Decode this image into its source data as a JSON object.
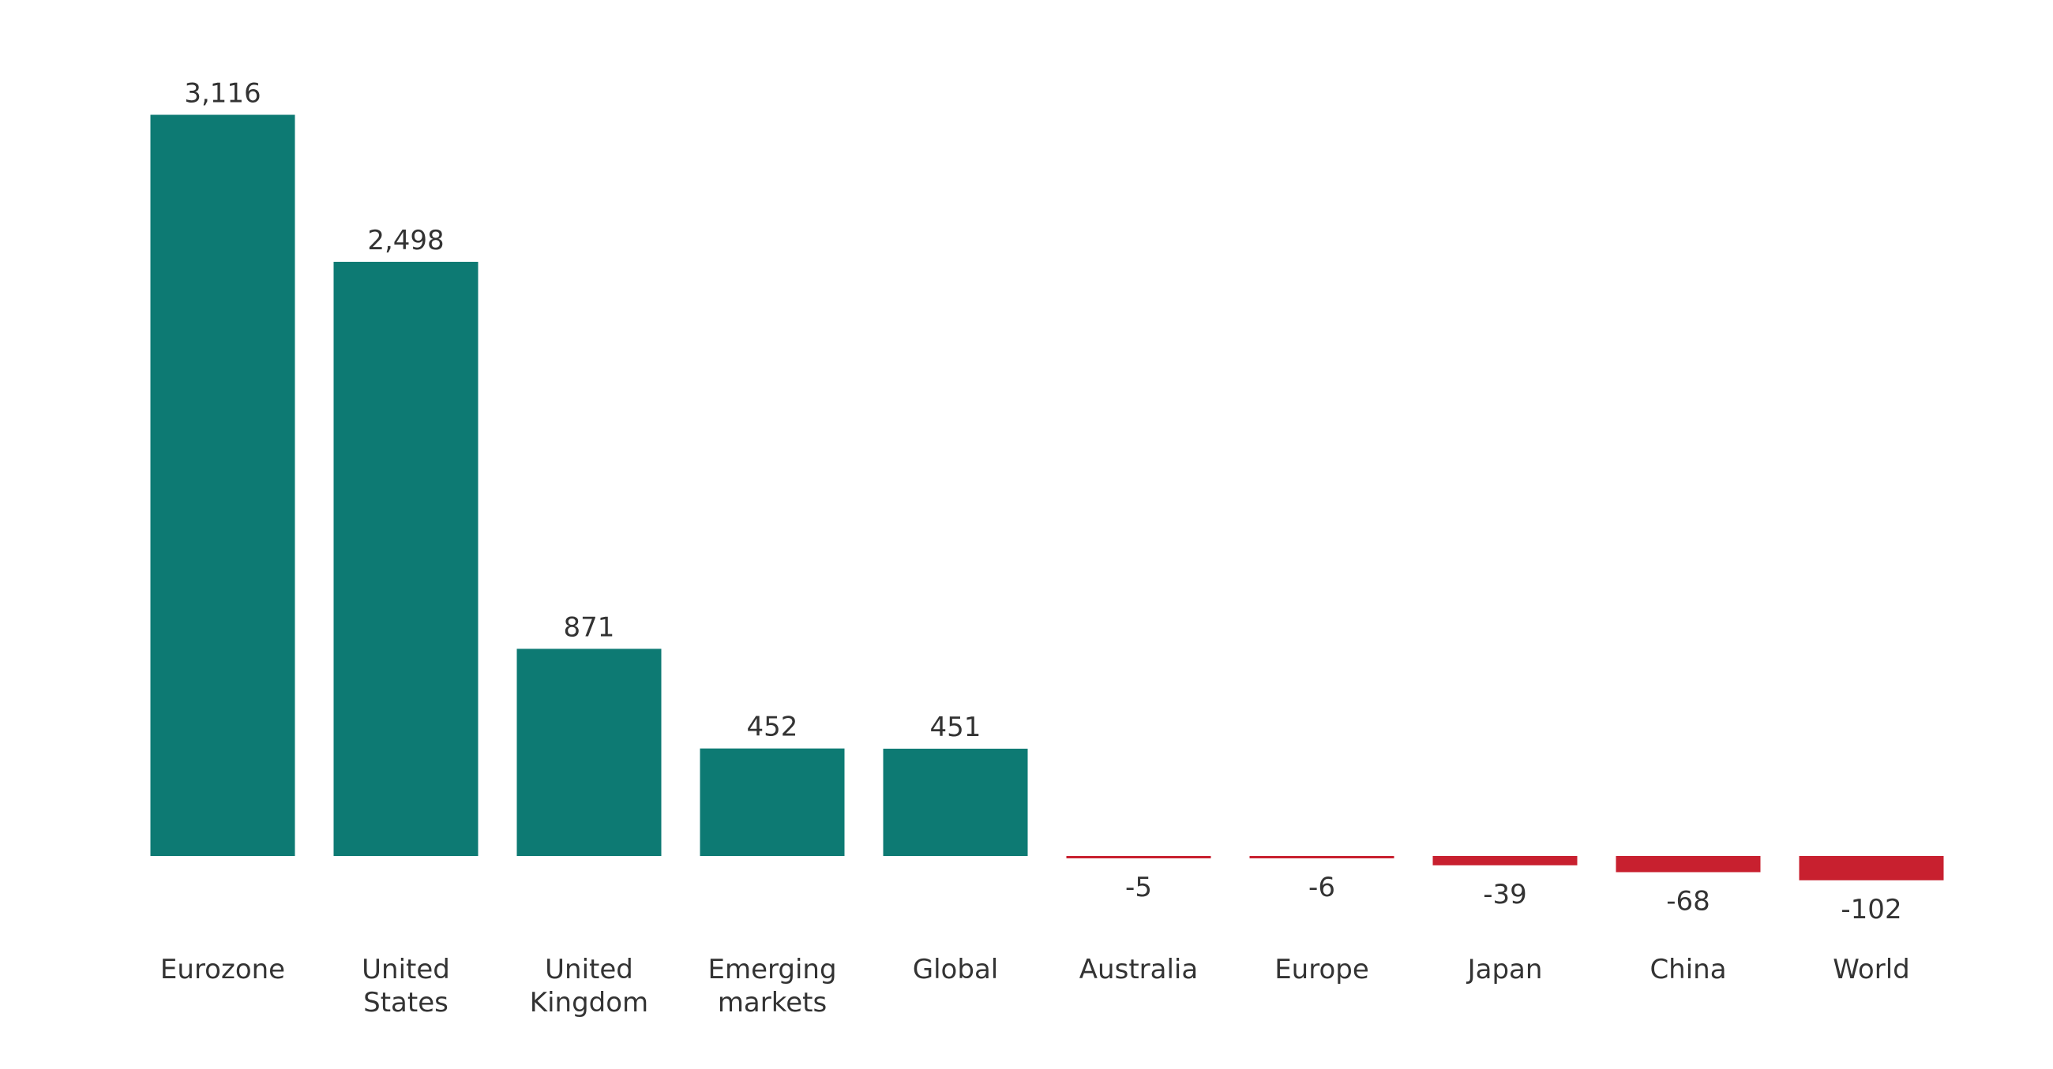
{
  "chart_data": {
    "type": "bar",
    "title": "",
    "xlabel": "",
    "ylabel": "",
    "categories": [
      [
        "Eurozone"
      ],
      [
        "United",
        "States"
      ],
      [
        "United",
        "Kingdom"
      ],
      [
        "Emerging",
        "markets"
      ],
      [
        "Global"
      ],
      [
        "Australia"
      ],
      [
        "Europe"
      ],
      [
        "Japan"
      ],
      [
        "China"
      ],
      [
        "World"
      ]
    ],
    "values": [
      3116,
      2498,
      871,
      452,
      451,
      -5,
      -6,
      -39,
      -68,
      -102
    ],
    "value_labels": [
      "3,116",
      "2,498",
      "871",
      "452",
      "451",
      "-5",
      "-6",
      "-39",
      "-68",
      "-102"
    ],
    "ylim": [
      -102,
      3116
    ],
    "grid": false,
    "legend": "none",
    "colors": {
      "positive": "#0d7a73",
      "negative": "#c8202f"
    }
  }
}
